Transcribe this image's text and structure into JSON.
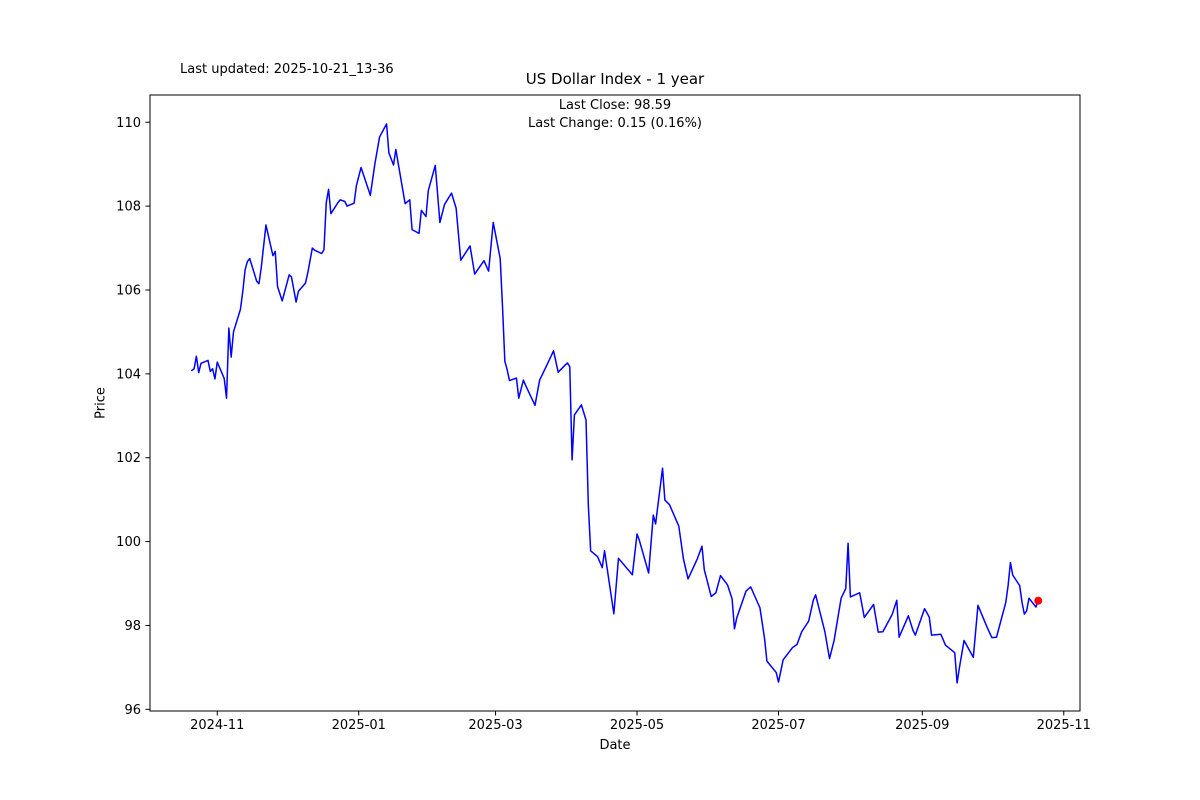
{
  "figure": {
    "last_updated": "Last updated: 2025-10-21_13-36",
    "title": "US Dollar Index - 1 year",
    "annotation": {
      "last_close": "Last Close: 98.59",
      "last_change": "Last Change: 0.15 (0.16%)"
    }
  },
  "chart_data": {
    "type": "line",
    "title": "US Dollar Index - 1 year",
    "xlabel": "Date",
    "ylabel": "Price",
    "grid": false,
    "legend": "none",
    "x_range": [
      "2024-10-03",
      "2025-11-08"
    ],
    "y_range": [
      95.96,
      110.65
    ],
    "x_ticks": [
      {
        "date": "2024-11-01",
        "label": "2024-11"
      },
      {
        "date": "2025-01-01",
        "label": "2025-01"
      },
      {
        "date": "2025-03-01",
        "label": "2025-03"
      },
      {
        "date": "2025-05-01",
        "label": "2025-05"
      },
      {
        "date": "2025-07-01",
        "label": "2025-07"
      },
      {
        "date": "2025-09-01",
        "label": "2025-09"
      },
      {
        "date": "2025-11-01",
        "label": "2025-11"
      }
    ],
    "y_ticks": [
      96,
      98,
      100,
      102,
      104,
      106,
      108,
      110
    ],
    "line_color": "#0000ff",
    "marker_color": "#ff0000",
    "axis_color": "#000000",
    "last_close": 98.59,
    "last_change": 0.15,
    "last_change_pct": "0.16%",
    "marker": {
      "date": "2025-10-21",
      "value": 98.59
    },
    "series": [
      {
        "name": "US Dollar Index",
        "color": "#0000ff",
        "points": [
          [
            "2024-10-21",
            104.08
          ],
          [
            "2024-10-22",
            104.12
          ],
          [
            "2024-10-23",
            104.42
          ],
          [
            "2024-10-24",
            104.03
          ],
          [
            "2024-10-25",
            104.25
          ],
          [
            "2024-10-28",
            104.32
          ],
          [
            "2024-10-29",
            104.06
          ],
          [
            "2024-10-30",
            104.12
          ],
          [
            "2024-10-31",
            103.88
          ],
          [
            "2024-11-01",
            104.28
          ],
          [
            "2024-11-04",
            103.89
          ],
          [
            "2024-11-05",
            103.42
          ],
          [
            "2024-11-06",
            105.09
          ],
          [
            "2024-11-07",
            104.4
          ],
          [
            "2024-11-08",
            105.0
          ],
          [
            "2024-11-11",
            105.54
          ],
          [
            "2024-11-12",
            105.96
          ],
          [
            "2024-11-13",
            106.48
          ],
          [
            "2024-11-14",
            106.68
          ],
          [
            "2024-11-15",
            106.75
          ],
          [
            "2024-11-18",
            106.21
          ],
          [
            "2024-11-19",
            106.15
          ],
          [
            "2024-11-20",
            106.55
          ],
          [
            "2024-11-21",
            107.05
          ],
          [
            "2024-11-22",
            107.55
          ],
          [
            "2024-11-25",
            106.82
          ],
          [
            "2024-11-26",
            106.92
          ],
          [
            "2024-11-27",
            106.08
          ],
          [
            "2024-11-29",
            105.74
          ],
          [
            "2024-12-02",
            106.36
          ],
          [
            "2024-12-03",
            106.31
          ],
          [
            "2024-12-05",
            105.71
          ],
          [
            "2024-12-06",
            105.97
          ],
          [
            "2024-12-09",
            106.16
          ],
          [
            "2024-12-10",
            106.4
          ],
          [
            "2024-12-11",
            106.7
          ],
          [
            "2024-12-12",
            107.0
          ],
          [
            "2024-12-13",
            106.95
          ],
          [
            "2024-12-16",
            106.87
          ],
          [
            "2024-12-17",
            106.96
          ],
          [
            "2024-12-18",
            108.08
          ],
          [
            "2024-12-19",
            108.4
          ],
          [
            "2024-12-20",
            107.82
          ],
          [
            "2024-12-23",
            108.08
          ],
          [
            "2024-12-24",
            108.15
          ],
          [
            "2024-12-26",
            108.11
          ],
          [
            "2024-12-27",
            108.0
          ],
          [
            "2024-12-30",
            108.07
          ],
          [
            "2024-12-31",
            108.49
          ],
          [
            "2025-01-02",
            108.92
          ],
          [
            "2025-01-06",
            108.26
          ],
          [
            "2025-01-08",
            109.02
          ],
          [
            "2025-01-10",
            109.65
          ],
          [
            "2025-01-13",
            109.96
          ],
          [
            "2025-01-14",
            109.27
          ],
          [
            "2025-01-16",
            108.98
          ],
          [
            "2025-01-17",
            109.35
          ],
          [
            "2025-01-21",
            108.06
          ],
          [
            "2025-01-23",
            108.15
          ],
          [
            "2025-01-24",
            107.44
          ],
          [
            "2025-01-27",
            107.35
          ],
          [
            "2025-01-28",
            107.9
          ],
          [
            "2025-01-30",
            107.75
          ],
          [
            "2025-01-31",
            108.37
          ],
          [
            "2025-02-03",
            108.97
          ],
          [
            "2025-02-05",
            107.61
          ],
          [
            "2025-02-07",
            108.04
          ],
          [
            "2025-02-10",
            108.31
          ],
          [
            "2025-02-12",
            107.95
          ],
          [
            "2025-02-14",
            106.71
          ],
          [
            "2025-02-18",
            107.05
          ],
          [
            "2025-02-20",
            106.38
          ],
          [
            "2025-02-24",
            106.7
          ],
          [
            "2025-02-26",
            106.45
          ],
          [
            "2025-02-28",
            107.61
          ],
          [
            "2025-03-03",
            106.75
          ],
          [
            "2025-03-04",
            105.6
          ],
          [
            "2025-03-05",
            104.3
          ],
          [
            "2025-03-06",
            104.1
          ],
          [
            "2025-03-07",
            103.84
          ],
          [
            "2025-03-10",
            103.9
          ],
          [
            "2025-03-11",
            103.42
          ],
          [
            "2025-03-13",
            103.85
          ],
          [
            "2025-03-14",
            103.72
          ],
          [
            "2025-03-18",
            103.25
          ],
          [
            "2025-03-20",
            103.85
          ],
          [
            "2025-03-24",
            104.31
          ],
          [
            "2025-03-26",
            104.55
          ],
          [
            "2025-03-28",
            104.04
          ],
          [
            "2025-03-31",
            104.21
          ],
          [
            "2025-04-01",
            104.26
          ],
          [
            "2025-04-02",
            104.17
          ],
          [
            "2025-04-03",
            101.95
          ],
          [
            "2025-04-04",
            103.02
          ],
          [
            "2025-04-07",
            103.26
          ],
          [
            "2025-04-09",
            102.9
          ],
          [
            "2025-04-10",
            100.87
          ],
          [
            "2025-04-11",
            99.78
          ],
          [
            "2025-04-14",
            99.64
          ],
          [
            "2025-04-16",
            99.38
          ],
          [
            "2025-04-17",
            99.78
          ],
          [
            "2025-04-21",
            98.28
          ],
          [
            "2025-04-23",
            99.6
          ],
          [
            "2025-04-25",
            99.47
          ],
          [
            "2025-04-29",
            99.21
          ],
          [
            "2025-05-01",
            100.18
          ],
          [
            "2025-05-02",
            100.03
          ],
          [
            "2025-05-06",
            99.25
          ],
          [
            "2025-05-08",
            100.63
          ],
          [
            "2025-05-09",
            100.42
          ],
          [
            "2025-05-12",
            101.75
          ],
          [
            "2025-05-13",
            100.99
          ],
          [
            "2025-05-15",
            100.88
          ],
          [
            "2025-05-19",
            100.37
          ],
          [
            "2025-05-21",
            99.59
          ],
          [
            "2025-05-23",
            99.11
          ],
          [
            "2025-05-27",
            99.59
          ],
          [
            "2025-05-29",
            99.89
          ],
          [
            "2025-05-30",
            99.33
          ],
          [
            "2025-06-02",
            98.69
          ],
          [
            "2025-06-04",
            98.78
          ],
          [
            "2025-06-06",
            99.19
          ],
          [
            "2025-06-09",
            98.97
          ],
          [
            "2025-06-11",
            98.63
          ],
          [
            "2025-06-12",
            97.92
          ],
          [
            "2025-06-13",
            98.18
          ],
          [
            "2025-06-17",
            98.82
          ],
          [
            "2025-06-19",
            98.92
          ],
          [
            "2025-06-23",
            98.42
          ],
          [
            "2025-06-25",
            97.68
          ],
          [
            "2025-06-26",
            97.15
          ],
          [
            "2025-06-30",
            96.88
          ],
          [
            "2025-07-01",
            96.65
          ],
          [
            "2025-07-03",
            97.18
          ],
          [
            "2025-07-07",
            97.47
          ],
          [
            "2025-07-09",
            97.55
          ],
          [
            "2025-07-11",
            97.85
          ],
          [
            "2025-07-14",
            98.1
          ],
          [
            "2025-07-16",
            98.6
          ],
          [
            "2025-07-17",
            98.73
          ],
          [
            "2025-07-21",
            97.85
          ],
          [
            "2025-07-23",
            97.21
          ],
          [
            "2025-07-25",
            97.65
          ],
          [
            "2025-07-28",
            98.65
          ],
          [
            "2025-07-30",
            98.88
          ],
          [
            "2025-07-31",
            99.96
          ],
          [
            "2025-08-01",
            98.68
          ],
          [
            "2025-08-05",
            98.78
          ],
          [
            "2025-08-07",
            98.19
          ],
          [
            "2025-08-11",
            98.5
          ],
          [
            "2025-08-13",
            97.84
          ],
          [
            "2025-08-15",
            97.85
          ],
          [
            "2025-08-19",
            98.26
          ],
          [
            "2025-08-21",
            98.6
          ],
          [
            "2025-08-22",
            97.72
          ],
          [
            "2025-08-26",
            98.23
          ],
          [
            "2025-08-28",
            97.88
          ],
          [
            "2025-08-29",
            97.77
          ],
          [
            "2025-09-02",
            98.4
          ],
          [
            "2025-09-04",
            98.2
          ],
          [
            "2025-09-05",
            97.77
          ],
          [
            "2025-09-09",
            97.79
          ],
          [
            "2025-09-11",
            97.53
          ],
          [
            "2025-09-15",
            97.35
          ],
          [
            "2025-09-16",
            96.63
          ],
          [
            "2025-09-17",
            96.99
          ],
          [
            "2025-09-19",
            97.64
          ],
          [
            "2025-09-23",
            97.24
          ],
          [
            "2025-09-25",
            98.48
          ],
          [
            "2025-09-29",
            97.95
          ],
          [
            "2025-10-01",
            97.71
          ],
          [
            "2025-10-03",
            97.72
          ],
          [
            "2025-10-07",
            98.55
          ],
          [
            "2025-10-08",
            98.95
          ],
          [
            "2025-10-09",
            99.5
          ],
          [
            "2025-10-10",
            99.2
          ],
          [
            "2025-10-13",
            98.95
          ],
          [
            "2025-10-14",
            98.55
          ],
          [
            "2025-10-15",
            98.27
          ],
          [
            "2025-10-16",
            98.35
          ],
          [
            "2025-10-17",
            98.65
          ],
          [
            "2025-10-20",
            98.44
          ],
          [
            "2025-10-21",
            98.59
          ]
        ]
      }
    ]
  }
}
